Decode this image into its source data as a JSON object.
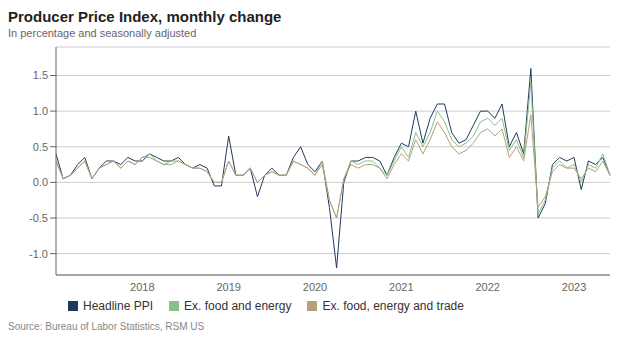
{
  "chart_data": {
    "type": "line",
    "title": "Producer Price Index, monthly change",
    "subtitle": "In percentage and seasonally adjusted",
    "source": "Source: Bureau of Labor Statistics, RSM US",
    "categories": [
      null,
      null,
      null,
      null,
      null,
      null,
      null,
      null,
      null,
      null,
      null,
      null,
      "2018",
      null,
      null,
      null,
      null,
      null,
      null,
      null,
      null,
      null,
      null,
      null,
      "2019",
      null,
      null,
      null,
      null,
      null,
      null,
      null,
      null,
      null,
      null,
      null,
      "2020",
      null,
      null,
      null,
      null,
      null,
      null,
      null,
      null,
      null,
      null,
      null,
      "2021",
      null,
      null,
      null,
      null,
      null,
      null,
      null,
      null,
      null,
      null,
      null,
      "2022",
      null,
      null,
      null,
      null,
      null,
      null,
      null,
      null,
      null,
      null,
      null,
      "2023",
      null,
      null,
      null,
      null,
      null
    ],
    "series": [
      {
        "name": "Headline PPI",
        "color": "#1f3a5f",
        "values": [
          0.4,
          0.05,
          0.1,
          0.25,
          0.35,
          0.05,
          0.2,
          0.3,
          0.3,
          0.25,
          0.35,
          0.3,
          0.3,
          0.4,
          0.35,
          0.3,
          0.3,
          0.35,
          0.25,
          0.2,
          0.25,
          0.2,
          -0.05,
          -0.05,
          0.65,
          0.1,
          0.1,
          0.2,
          -0.2,
          0.1,
          0.2,
          0.1,
          0.1,
          0.35,
          0.5,
          0.25,
          0.15,
          0.3,
          -0.35,
          -1.2,
          0.0,
          0.3,
          0.3,
          0.35,
          0.35,
          0.3,
          0.1,
          0.35,
          0.55,
          0.5,
          1.0,
          0.55,
          0.9,
          1.1,
          1.1,
          0.7,
          0.55,
          0.6,
          0.8,
          1.0,
          1.0,
          0.9,
          1.1,
          0.5,
          0.7,
          0.4,
          1.6,
          -0.5,
          -0.3,
          0.25,
          0.35,
          0.3,
          0.35,
          -0.1,
          0.3,
          0.25,
          0.35,
          0.1
        ]
      },
      {
        "name": "Ex. food and energy",
        "color": "#8abf87",
        "values": [
          0.3,
          0.05,
          0.1,
          0.2,
          0.3,
          0.05,
          0.2,
          0.25,
          0.3,
          0.2,
          0.3,
          0.25,
          0.35,
          0.4,
          0.3,
          0.25,
          0.25,
          0.3,
          0.25,
          0.2,
          0.2,
          0.15,
          0.0,
          0.0,
          0.3,
          0.1,
          0.1,
          0.2,
          0.0,
          0.1,
          0.15,
          0.1,
          0.1,
          0.3,
          0.25,
          0.2,
          0.1,
          0.3,
          -0.25,
          -0.5,
          0.05,
          0.3,
          0.25,
          0.3,
          0.3,
          0.2,
          0.1,
          0.3,
          0.5,
          0.35,
          0.7,
          0.5,
          0.7,
          1.0,
          0.85,
          0.6,
          0.5,
          0.55,
          0.65,
          0.85,
          0.9,
          0.8,
          0.9,
          0.45,
          0.6,
          0.35,
          1.4,
          -0.45,
          -0.25,
          0.2,
          0.3,
          0.2,
          0.25,
          0.0,
          0.25,
          0.2,
          0.4,
          0.1
        ]
      },
      {
        "name": "Ex. food, energy and trade",
        "color": "#b5a07a",
        "values": [
          0.3,
          0.05,
          0.1,
          0.2,
          0.3,
          0.05,
          0.2,
          0.25,
          0.3,
          0.2,
          0.3,
          0.25,
          0.35,
          0.35,
          0.3,
          0.25,
          0.3,
          0.3,
          0.25,
          0.2,
          0.2,
          0.15,
          0.0,
          0.0,
          0.3,
          0.1,
          0.1,
          0.2,
          0.0,
          0.1,
          0.15,
          0.1,
          0.1,
          0.3,
          0.25,
          0.2,
          0.1,
          0.25,
          -0.25,
          -0.5,
          0.05,
          0.25,
          0.2,
          0.25,
          0.25,
          0.2,
          0.05,
          0.25,
          0.4,
          0.3,
          0.6,
          0.4,
          0.6,
          0.85,
          0.7,
          0.5,
          0.4,
          0.45,
          0.55,
          0.7,
          0.75,
          0.65,
          0.75,
          0.35,
          0.5,
          0.3,
          0.95,
          -0.35,
          -0.2,
          0.15,
          0.25,
          0.2,
          0.2,
          0.05,
          0.2,
          0.15,
          0.3,
          0.1
        ]
      }
    ],
    "ylim": [
      -1.3,
      1.9
    ],
    "yticks": [
      {
        "value": -1.0,
        "label": "-1.0"
      },
      -0.5,
      {
        "value": 0.0,
        "label": "0.0"
      },
      0.5,
      {
        "value": 1.0,
        "label": "1.0"
      },
      1.5
    ],
    "grid": true,
    "legend": "bottom"
  }
}
